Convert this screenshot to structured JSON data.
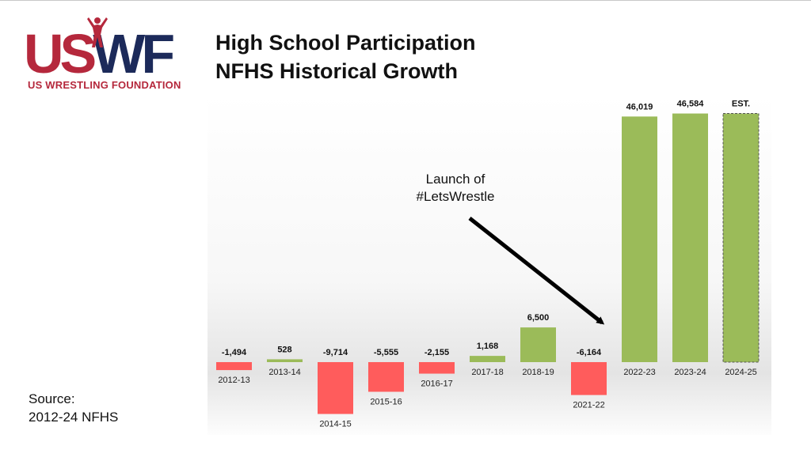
{
  "logo": {
    "mark_part1": "US",
    "mark_part2": "WF",
    "subtitle": "US WRESTLING FOUNDATION",
    "colors": {
      "red": "#b5283c",
      "navy": "#1c2a5a"
    }
  },
  "title_line1": "High School Participation",
  "title_line2": "NFHS Historical Growth",
  "source": {
    "label": "Source:",
    "value": "2012-24 NFHS"
  },
  "annotation": {
    "line1": "Launch of",
    "line2": "#LetsWrestle"
  },
  "chart_data": {
    "type": "bar",
    "title": "High School Participation NFHS Historical Growth",
    "categories": [
      "2012-13",
      "2013-14",
      "2014-15",
      "2015-16",
      "2016-17",
      "2017-18",
      "2018-19",
      "2021-22",
      "2022-23",
      "2023-24",
      "2024-25"
    ],
    "values": [
      -1494,
      528,
      -9714,
      -5555,
      -2155,
      1168,
      6500,
      -6164,
      46019,
      46584,
      46584
    ],
    "labels": [
      "-1,494",
      "528",
      "-9,714",
      "-5,555",
      "-2,155",
      "1,168",
      "6,500",
      "-6,164",
      "46,019",
      "46,584",
      "EST."
    ],
    "estimated": [
      false,
      false,
      false,
      false,
      false,
      false,
      false,
      false,
      false,
      false,
      true
    ],
    "colors": {
      "positive": "#9bbb59",
      "negative": "#ff5c5c"
    },
    "ylim": [
      -10000,
      47000
    ],
    "grid": false,
    "xlabel": "",
    "ylabel": ""
  }
}
